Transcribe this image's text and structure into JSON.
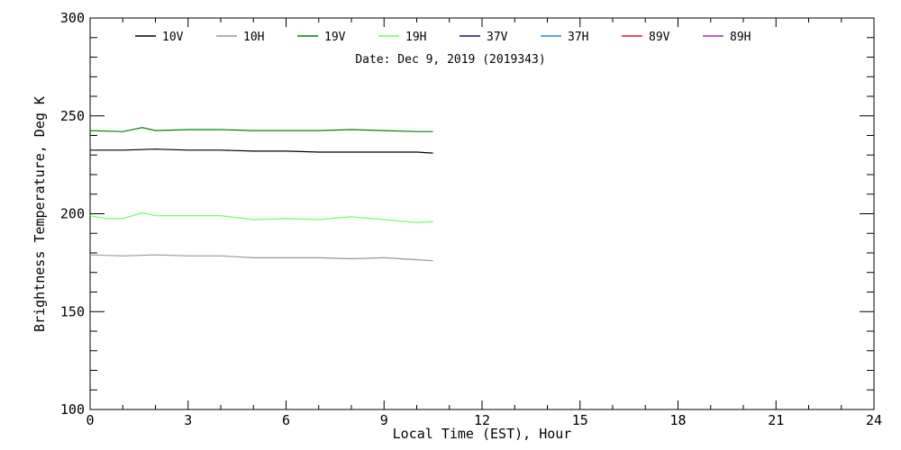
{
  "chart_data": {
    "type": "line",
    "date_label": "Date: Dec  9, 2019 (2019343)",
    "xlabel": "Local Time (EST), Hour",
    "ylabel": "Brightness Temperature, Deg K",
    "xlim": [
      0,
      24
    ],
    "ylim": [
      100,
      300
    ],
    "x_ticks": [
      "0",
      "3",
      "6",
      "9",
      "12",
      "15",
      "18",
      "21",
      "24"
    ],
    "y_ticks": [
      "100",
      "150",
      "200",
      "250",
      "300"
    ],
    "legend_position": "top",
    "grid": false,
    "series": [
      {
        "name": "10V",
        "color": "#000000",
        "x": [
          0,
          1,
          2,
          3,
          4,
          5,
          6,
          7,
          8,
          9,
          10,
          10.5
        ],
        "y": [
          232.5,
          232.5,
          233,
          232.5,
          232.5,
          232,
          232,
          231.5,
          231.5,
          231.5,
          231.5,
          231
        ]
      },
      {
        "name": "10H",
        "color": "#999999",
        "x": [
          0,
          1,
          2,
          3,
          4,
          5,
          6,
          7,
          8,
          9,
          10,
          10.5
        ],
        "y": [
          179,
          178.5,
          179,
          178.5,
          178.5,
          177.5,
          177.5,
          177.5,
          177,
          177.5,
          176.5,
          176
        ]
      },
      {
        "name": "19V",
        "color": "#008000",
        "x": [
          0,
          1,
          1.6,
          2,
          3,
          4,
          5,
          6,
          7,
          8,
          9,
          10,
          10.5
        ],
        "y": [
          242.5,
          242,
          244,
          242.5,
          243,
          243,
          242.5,
          242.5,
          242.5,
          243,
          242.5,
          242,
          242
        ]
      },
      {
        "name": "19H",
        "color": "#66ff66",
        "x": [
          0,
          0.5,
          1,
          1.6,
          2,
          3,
          4,
          5,
          6,
          7,
          8,
          9,
          10,
          10.5
        ],
        "y": [
          199,
          197.5,
          197.5,
          200.5,
          199,
          199,
          199,
          197,
          197.5,
          197,
          198.5,
          197,
          195.5,
          196
        ]
      },
      {
        "name": "37V",
        "color": "#1a1a66",
        "x": [],
        "y": []
      },
      {
        "name": "37H",
        "color": "#1f8fd6",
        "x": [],
        "y": []
      },
      {
        "name": "89V",
        "color": "#cc1f3f",
        "x": [],
        "y": []
      },
      {
        "name": "89H",
        "color": "#9933cc",
        "x": [],
        "y": []
      }
    ]
  }
}
